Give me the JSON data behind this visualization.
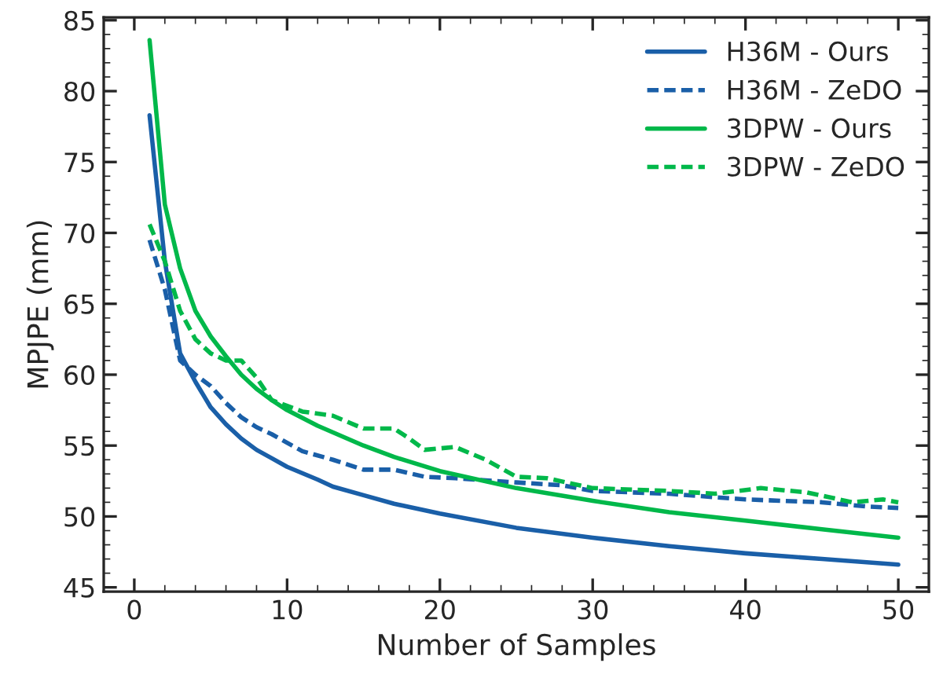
{
  "chart_data": {
    "type": "line",
    "xlabel": "Number of Samples",
    "ylabel": "MPJPE (mm)",
    "xlim": [
      -2,
      52
    ],
    "ylim": [
      44.7,
      85.2
    ],
    "xticks": [
      0,
      10,
      20,
      30,
      40,
      50
    ],
    "yticks": [
      45,
      50,
      55,
      60,
      65,
      70,
      75,
      80,
      85
    ],
    "legend": "top right",
    "grid": false,
    "series": [
      {
        "name": "H36M - Ours",
        "color": "#1a5fa8",
        "line_style": "solid",
        "x": [
          1,
          2,
          3,
          4,
          5,
          6,
          7,
          8,
          9,
          10,
          12,
          13,
          15,
          17,
          20,
          25,
          30,
          35,
          40,
          45,
          50
        ],
        "values": [
          78.3,
          68,
          61.5,
          59.5,
          57.7,
          56.5,
          55.5,
          54.7,
          54.1,
          53.5,
          52.6,
          52.1,
          51.5,
          50.9,
          50.2,
          49.2,
          48.5,
          47.9,
          47.4,
          47.0,
          46.6
        ]
      },
      {
        "name": "H36M - ZeDO",
        "color": "#1a5fa8",
        "line_style": "dashed",
        "x": [
          1,
          2,
          3,
          4,
          5,
          6,
          7,
          8,
          9,
          10,
          11,
          13,
          15,
          17,
          19,
          21,
          25,
          28,
          30,
          35,
          40,
          45,
          48,
          50
        ],
        "values": [
          69.5,
          66,
          61,
          60,
          59.2,
          58,
          57,
          56.3,
          55.8,
          55.2,
          54.6,
          54,
          53.3,
          53.3,
          52.8,
          52.7,
          52.4,
          52.2,
          51.8,
          51.6,
          51.2,
          51.0,
          50.7,
          50.6
        ]
      },
      {
        "name": "3DPW - Ours",
        "color": "#00b84a",
        "line_style": "solid",
        "x": [
          1,
          2,
          3,
          4,
          5,
          6,
          7,
          8,
          9,
          10,
          12,
          15,
          17,
          20,
          25,
          30,
          35,
          40,
          45,
          50
        ],
        "values": [
          83.6,
          72,
          67.5,
          64.5,
          62.7,
          61.3,
          60,
          59,
          58.2,
          57.5,
          56.4,
          55,
          54.2,
          53.2,
          52,
          51.1,
          50.3,
          49.7,
          49.1,
          48.5
        ]
      },
      {
        "name": "3DPW - ZeDO",
        "color": "#00b84a",
        "line_style": "dashed",
        "x": [
          1,
          2,
          3,
          4,
          5,
          6,
          7,
          8,
          9,
          10,
          11,
          13,
          15,
          17,
          18,
          19,
          21,
          23,
          25,
          27,
          30,
          35,
          38,
          41,
          44,
          47,
          49,
          50
        ],
        "values": [
          70.6,
          68,
          64.5,
          62.5,
          61.5,
          61,
          61,
          59.8,
          58.2,
          57.8,
          57.4,
          57.1,
          56.2,
          56.2,
          55.5,
          54.7,
          54.9,
          54,
          52.8,
          52.7,
          52,
          51.8,
          51.6,
          52.0,
          51.7,
          51.0,
          51.2,
          51.0
        ]
      }
    ]
  }
}
